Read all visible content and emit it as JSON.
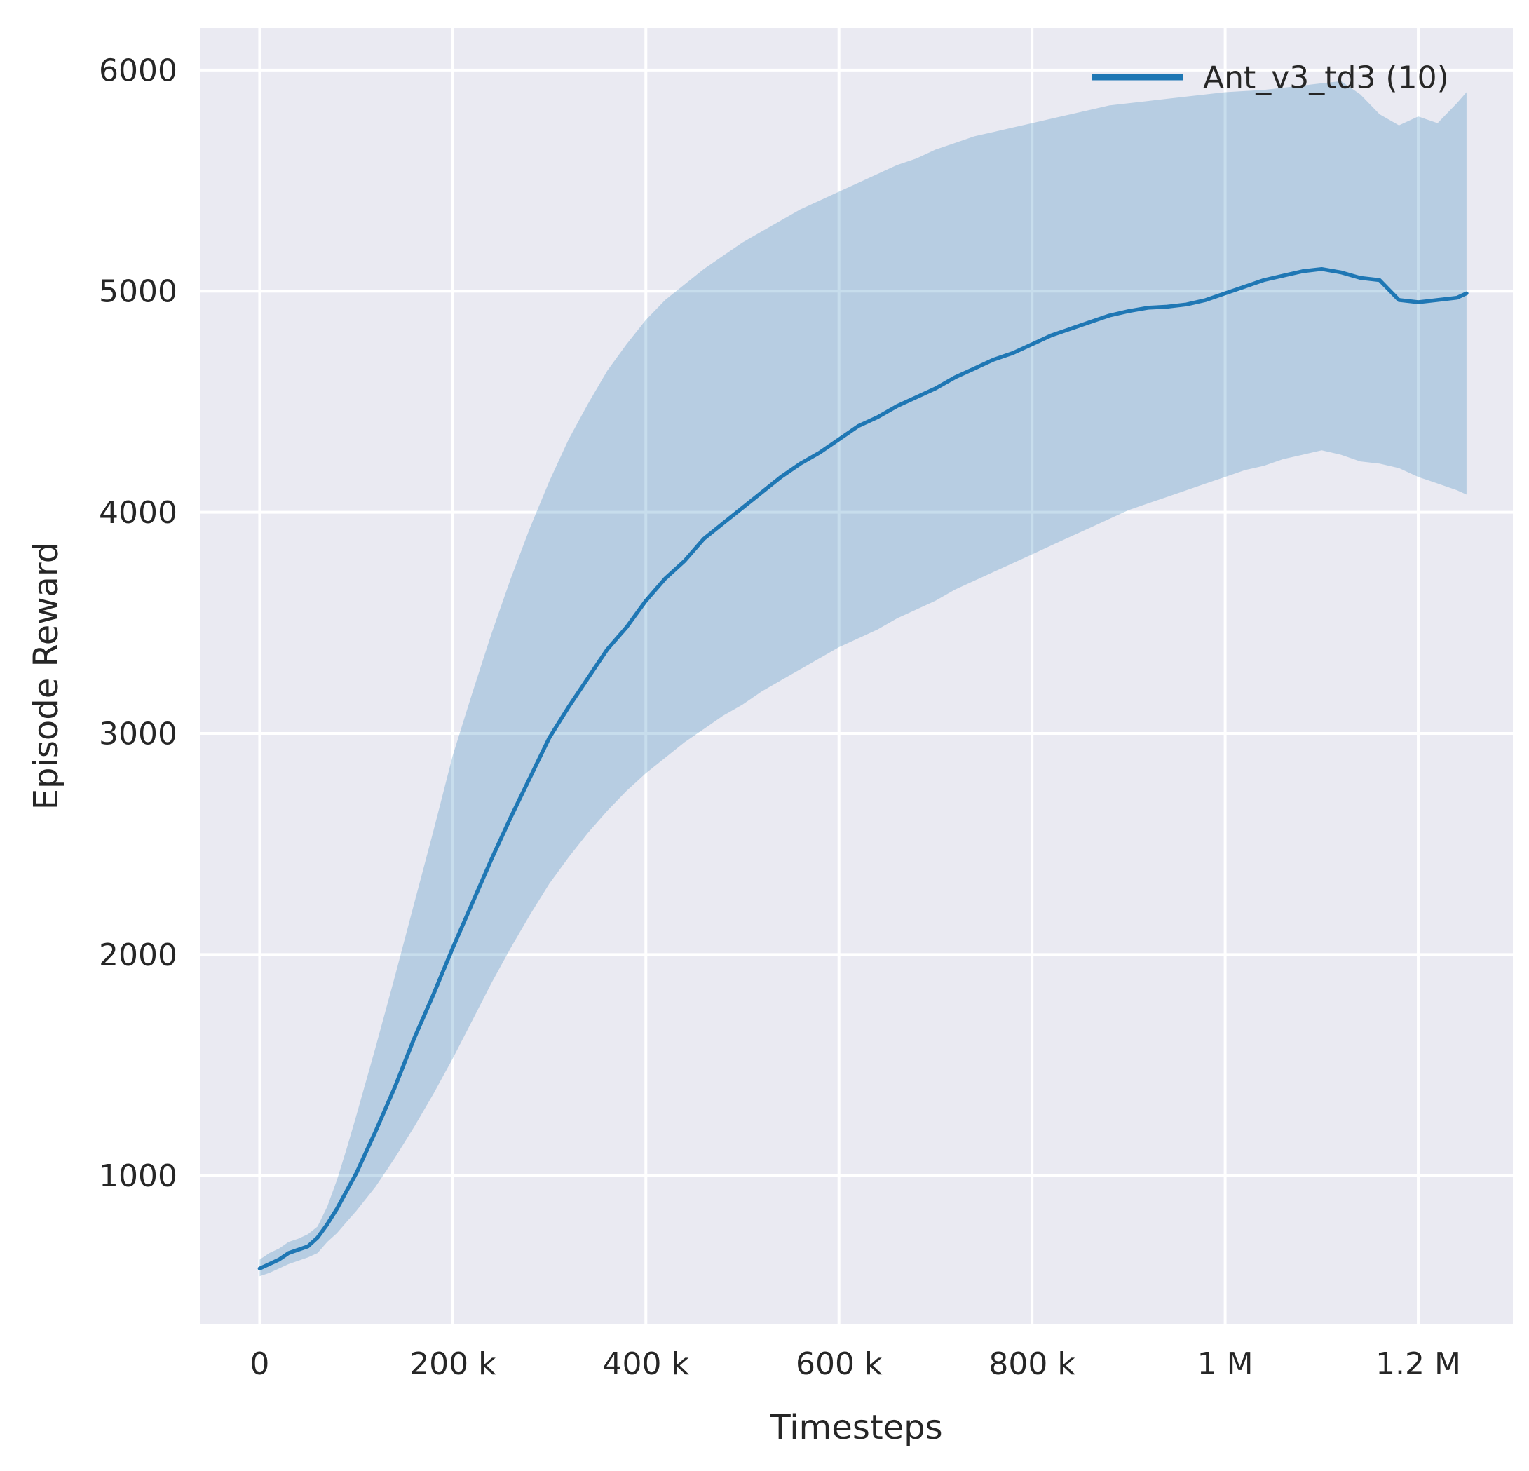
{
  "colors": {
    "figure_background": "#ffffff",
    "plot_background": "#eaeaf2",
    "grid": "#ffffff",
    "text": "#262626",
    "series_blue": "#1f77b4"
  },
  "chart_data": {
    "type": "line",
    "title": "",
    "xlabel": "Timesteps",
    "ylabel": "Episode Reward",
    "xlim": [
      -62000,
      1298000
    ],
    "ylim": [
      330,
      6190
    ],
    "grid": true,
    "legend_position": "upper right",
    "x_ticks": [
      {
        "value": 0,
        "label": "0"
      },
      {
        "value": 200000,
        "label": "200 k"
      },
      {
        "value": 400000,
        "label": "400 k"
      },
      {
        "value": 600000,
        "label": "600 k"
      },
      {
        "value": 800000,
        "label": "800 k"
      },
      {
        "value": 1000000,
        "label": "1 M"
      },
      {
        "value": 1200000,
        "label": "1.2 M"
      }
    ],
    "y_ticks": [
      {
        "value": 1000,
        "label": "1000"
      },
      {
        "value": 2000,
        "label": "2000"
      },
      {
        "value": 3000,
        "label": "3000"
      },
      {
        "value": 4000,
        "label": "4000"
      },
      {
        "value": 5000,
        "label": "5000"
      },
      {
        "value": 6000,
        "label": "6000"
      }
    ],
    "series": [
      {
        "name": "Ant_v3_td3 (10)",
        "color": "#1f77b4",
        "line_width": 5.5,
        "band_opacity": 0.25,
        "x": [
          0,
          10000,
          20000,
          30000,
          40000,
          50000,
          60000,
          70000,
          80000,
          90000,
          100000,
          120000,
          140000,
          160000,
          180000,
          200000,
          220000,
          240000,
          260000,
          280000,
          300000,
          320000,
          340000,
          360000,
          380000,
          400000,
          420000,
          440000,
          460000,
          480000,
          500000,
          520000,
          540000,
          560000,
          580000,
          600000,
          620000,
          640000,
          660000,
          680000,
          700000,
          720000,
          740000,
          760000,
          780000,
          800000,
          820000,
          840000,
          860000,
          880000,
          900000,
          920000,
          940000,
          960000,
          980000,
          1000000,
          1020000,
          1040000,
          1060000,
          1080000,
          1100000,
          1120000,
          1140000,
          1160000,
          1180000,
          1200000,
          1220000,
          1240000,
          1250000
        ],
        "mean": [
          580,
          600,
          620,
          650,
          665,
          680,
          720,
          780,
          850,
          930,
          1010,
          1200,
          1400,
          1620,
          1820,
          2030,
          2230,
          2430,
          2620,
          2800,
          2980,
          3120,
          3250,
          3380,
          3480,
          3600,
          3700,
          3780,
          3880,
          3950,
          4020,
          4090,
          4160,
          4220,
          4270,
          4330,
          4390,
          4430,
          4480,
          4520,
          4560,
          4610,
          4650,
          4690,
          4720,
          4760,
          4800,
          4830,
          4860,
          4890,
          4910,
          4925,
          4930,
          4940,
          4960,
          4990,
          5020,
          5050,
          5070,
          5090,
          5100,
          5085,
          5060,
          5050,
          4960,
          4950,
          4960,
          4970,
          4990
        ],
        "lower": [
          545,
          560,
          580,
          600,
          615,
          630,
          650,
          700,
          740,
          790,
          840,
          950,
          1080,
          1220,
          1370,
          1530,
          1700,
          1870,
          2030,
          2180,
          2320,
          2440,
          2550,
          2650,
          2740,
          2820,
          2890,
          2960,
          3020,
          3080,
          3130,
          3190,
          3240,
          3290,
          3340,
          3390,
          3430,
          3470,
          3520,
          3560,
          3600,
          3650,
          3690,
          3730,
          3770,
          3810,
          3850,
          3890,
          3930,
          3970,
          4010,
          4040,
          4070,
          4100,
          4130,
          4160,
          4190,
          4210,
          4240,
          4260,
          4280,
          4260,
          4230,
          4220,
          4200,
          4160,
          4130,
          4100,
          4080
        ],
        "upper": [
          620,
          650,
          670,
          700,
          715,
          735,
          770,
          860,
          980,
          1120,
          1270,
          1580,
          1900,
          2230,
          2560,
          2900,
          3180,
          3450,
          3700,
          3930,
          4140,
          4330,
          4490,
          4640,
          4760,
          4870,
          4960,
          5030,
          5100,
          5160,
          5220,
          5270,
          5320,
          5370,
          5410,
          5450,
          5490,
          5530,
          5570,
          5600,
          5640,
          5670,
          5700,
          5720,
          5740,
          5760,
          5780,
          5800,
          5820,
          5840,
          5850,
          5860,
          5870,
          5880,
          5890,
          5900,
          5905,
          5910,
          5920,
          5930,
          5940,
          5950,
          5890,
          5800,
          5750,
          5790,
          5760,
          5850,
          5900
        ]
      }
    ]
  }
}
